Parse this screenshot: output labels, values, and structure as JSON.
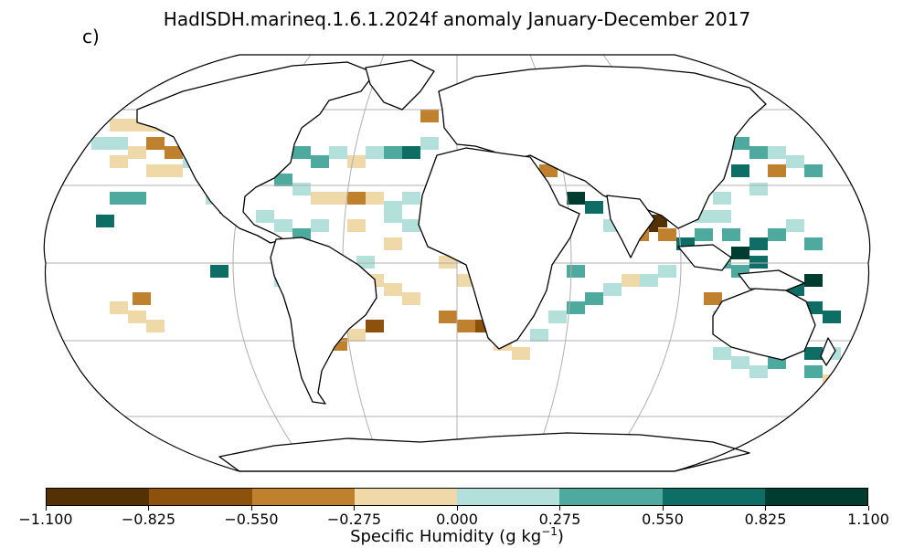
{
  "title": "HadISDH.marineq.1.6.1.2024f anomaly January-December 2017",
  "panel_label": "c)",
  "colorbar": {
    "label": "Specific Humidity (g kg",
    "label_sup": "−1",
    "label_end": ")",
    "ticks": [
      "−1.100",
      "−0.825",
      "−0.550",
      "−0.275",
      "0.000",
      "0.275",
      "0.550",
      "0.825",
      "1.100"
    ],
    "colors": [
      "#543005",
      "#8c510a",
      "#bf812d",
      "#f0d9a8",
      "#b3e0da",
      "#4ea99e",
      "#0e6e65",
      "#003c30"
    ]
  },
  "map": {
    "projection": "Robinson",
    "ocean_color": "#ffffff",
    "land_outline_color": "#000000",
    "gridline_color": "#b0b0b0"
  }
}
